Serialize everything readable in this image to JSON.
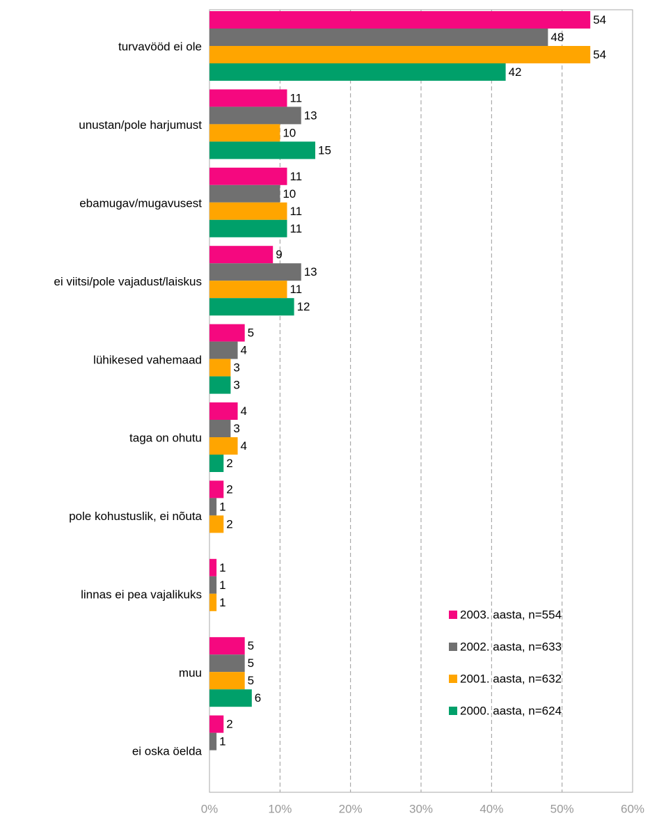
{
  "chart_data": {
    "type": "bar",
    "orientation": "horizontal",
    "categories": [
      "turvavööd ei ole",
      "unustan/pole harjumust",
      "ebamugav/mugavusest",
      "ei viitsi/pole vajadust/laiskus",
      "lühikesed vahemaad",
      "taga on ohutu",
      "pole kohustuslik, ei nõuta",
      "linnas ei pea vajalikuks",
      "muu",
      "ei oska öelda"
    ],
    "series": [
      {
        "name": "2003. aasta, n=554",
        "color": "#f5087f",
        "values": [
          54,
          11,
          11,
          9,
          5,
          4,
          2,
          1,
          5,
          2
        ]
      },
      {
        "name": "2002. aasta, n=633",
        "color": "#707070",
        "values": [
          48,
          13,
          10,
          13,
          4,
          3,
          1,
          1,
          5,
          1
        ]
      },
      {
        "name": "2001. aasta, n=632",
        "color": "#ffa500",
        "values": [
          54,
          10,
          11,
          11,
          3,
          4,
          2,
          1,
          5,
          null
        ]
      },
      {
        "name": "2000. aasta, n=624",
        "color": "#00a06a",
        "values": [
          42,
          15,
          11,
          12,
          3,
          2,
          null,
          null,
          6,
          null
        ]
      }
    ],
    "xlim": [
      0,
      60
    ],
    "xticks": [
      {
        "value": 0,
        "label": "0%"
      },
      {
        "value": 10,
        "label": "10%"
      },
      {
        "value": 20,
        "label": "20%"
      },
      {
        "value": 30,
        "label": "30%"
      },
      {
        "value": 40,
        "label": "40%"
      },
      {
        "value": 50,
        "label": "50%"
      },
      {
        "value": 60,
        "label": "60%"
      }
    ],
    "grid": true,
    "legend": "lower right"
  }
}
